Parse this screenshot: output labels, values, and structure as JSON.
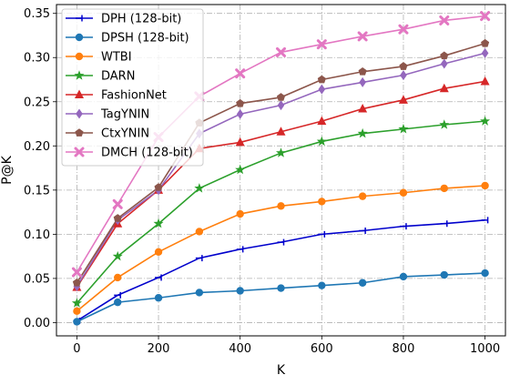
{
  "chart_data": {
    "type": "line",
    "xlabel": "K",
    "ylabel": "P@K",
    "xlim": [
      -50,
      1050
    ],
    "ylim": [
      -0.015,
      0.36
    ],
    "x_ticks": [
      0,
      200,
      400,
      600,
      800,
      1000
    ],
    "y_ticks": [
      0.0,
      0.05,
      0.1,
      0.15,
      0.2,
      0.25,
      0.3,
      0.35
    ],
    "x_tick_labels": [
      "0",
      "200",
      "400",
      "600",
      "800",
      "1000"
    ],
    "y_tick_labels": [
      "0.00",
      "0.05",
      "0.10",
      "0.15",
      "0.20",
      "0.25",
      "0.30",
      "0.35"
    ],
    "grid": true,
    "legend_position": "top-left",
    "x": [
      0,
      100,
      200,
      300,
      400,
      500,
      600,
      700,
      800,
      900,
      1000
    ],
    "series": [
      {
        "name": "DPH (128-bit)",
        "color": "#0000cc",
        "marker": "tri_left",
        "values": [
          0.002,
          0.031,
          0.051,
          0.073,
          0.083,
          0.091,
          0.1,
          0.104,
          0.109,
          0.112,
          0.116
        ]
      },
      {
        "name": "DPSH (128-bit)",
        "color": "#1f77b4",
        "marker": "circle",
        "values": [
          0.001,
          0.023,
          0.028,
          0.034,
          0.036,
          0.039,
          0.042,
          0.045,
          0.052,
          0.054,
          0.056
        ]
      },
      {
        "name": "WTBI",
        "color": "#ff7f0e",
        "marker": "circle",
        "values": [
          0.013,
          0.051,
          0.08,
          0.103,
          0.123,
          0.132,
          0.137,
          0.143,
          0.147,
          0.152,
          0.155
        ]
      },
      {
        "name": "DARN",
        "color": "#2ca02c",
        "marker": "star",
        "values": [
          0.022,
          0.075,
          0.112,
          0.152,
          0.173,
          0.192,
          0.205,
          0.214,
          0.219,
          0.224,
          0.228
        ]
      },
      {
        "name": "FashionNet",
        "color": "#d62728",
        "marker": "triangle",
        "values": [
          0.04,
          0.112,
          0.15,
          0.197,
          0.204,
          0.216,
          0.228,
          0.242,
          0.252,
          0.265,
          0.273
        ]
      },
      {
        "name": "TagYNIN",
        "color": "#9467bd",
        "marker": "diamond",
        "values": [
          0.041,
          0.116,
          0.15,
          0.214,
          0.236,
          0.246,
          0.264,
          0.272,
          0.28,
          0.293,
          0.305
        ]
      },
      {
        "name": "CtxYNIN",
        "color": "#8c564b",
        "marker": "pentagon",
        "values": [
          0.045,
          0.118,
          0.153,
          0.226,
          0.248,
          0.255,
          0.275,
          0.284,
          0.29,
          0.302,
          0.316
        ]
      },
      {
        "name": "DMCH (128-bit)",
        "color": "#e377c2",
        "marker": "x",
        "values": [
          0.057,
          0.134,
          0.21,
          0.256,
          0.282,
          0.306,
          0.315,
          0.324,
          0.332,
          0.342,
          0.347
        ]
      }
    ]
  }
}
